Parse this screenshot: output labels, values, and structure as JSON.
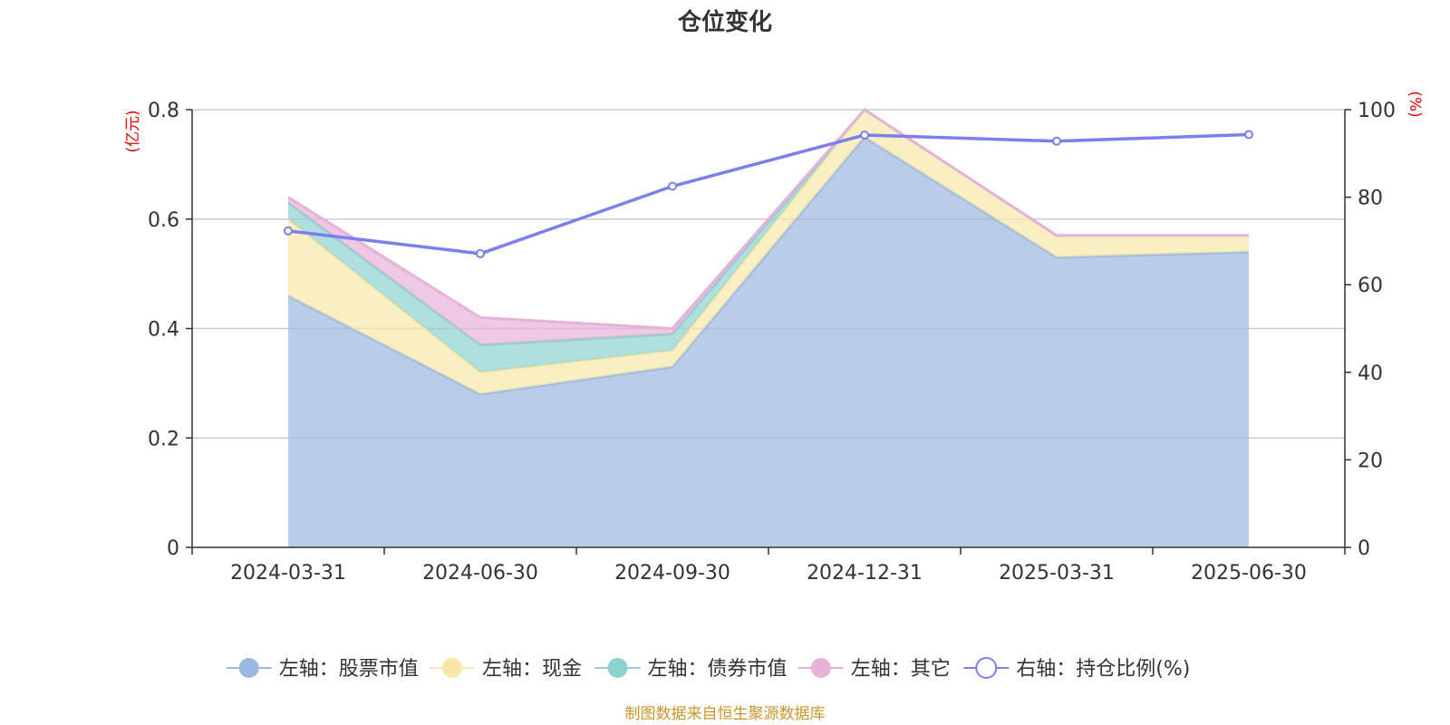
{
  "chart_data": {
    "type": "area",
    "title": "仓位变化",
    "left_unit": "(亿元)",
    "right_unit": "(%)",
    "categories": [
      "2024-03-31",
      "2024-06-30",
      "2024-09-30",
      "2024-12-31",
      "2025-03-31",
      "2025-06-30"
    ],
    "left_axis": {
      "ylim": [
        0,
        0.8
      ],
      "ticks": [
        "0",
        "0.2",
        "0.4",
        "0.6",
        "0.8"
      ]
    },
    "right_axis": {
      "ylim": [
        0,
        100
      ],
      "ticks": [
        "0",
        "20",
        "40",
        "60",
        "80",
        "100"
      ]
    },
    "grid": true,
    "legend_position": "bottom",
    "stacked_series": [
      {
        "name": "左轴：股票市值",
        "color": "#9bb8e0",
        "values": [
          0.46,
          0.28,
          0.33,
          0.75,
          0.53,
          0.54
        ]
      },
      {
        "name": "左轴：现金",
        "color": "#f8e8a8",
        "values": [
          0.14,
          0.04,
          0.03,
          0.05,
          0.04,
          0.03
        ]
      },
      {
        "name": "左轴：债券市值",
        "color": "#8dd1d1",
        "values": [
          0.03,
          0.05,
          0.03,
          0.0,
          0.0,
          0.0
        ]
      },
      {
        "name": "左轴：其它",
        "color": "#e6b2d8",
        "values": [
          0.01,
          0.05,
          0.01,
          0.0,
          0.0,
          0.0
        ]
      }
    ],
    "line_series": {
      "name": "右轴：持仓比例(%)",
      "color": "#7b7ff0",
      "values": [
        72.3,
        67.1,
        82.5,
        94.2,
        92.8,
        94.3
      ]
    },
    "source": "制图数据来自恒生聚源数据库"
  }
}
